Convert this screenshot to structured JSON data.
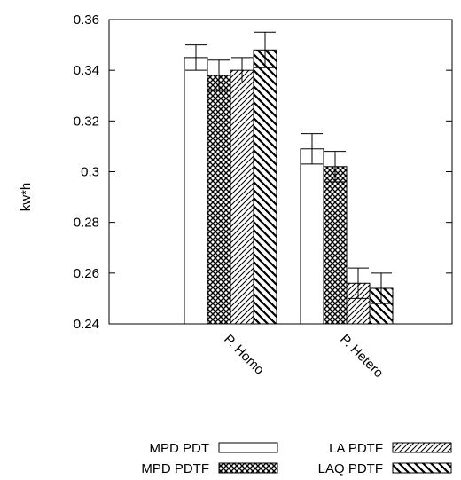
{
  "chart_data": {
    "type": "bar",
    "title": "",
    "xlabel": "",
    "ylabel": "kw*h",
    "ylim": [
      0.24,
      0.36
    ],
    "yticks": [
      "0.24",
      "0.26",
      "0.28",
      "0.3",
      "0.32",
      "0.34",
      "0.36"
    ],
    "categories": [
      "P. Homo",
      "P. Hetero"
    ],
    "grid": false,
    "legend_position": "bottom",
    "series": [
      {
        "name": "MPD PDT",
        "pattern": "none",
        "values": [
          0.345,
          0.309
        ],
        "errors": [
          0.005,
          0.006
        ]
      },
      {
        "name": "MPD PDTF",
        "pattern": "crosshatch",
        "values": [
          0.338,
          0.302
        ],
        "errors": [
          0.006,
          0.006
        ]
      },
      {
        "name": "LA PDTF",
        "pattern": "diag-right",
        "values": [
          0.34,
          0.256
        ],
        "errors": [
          0.005,
          0.006
        ]
      },
      {
        "name": "LAQ PDTF",
        "pattern": "diag-left",
        "values": [
          0.348,
          0.254
        ],
        "errors": [
          0.007,
          0.006
        ]
      }
    ]
  }
}
